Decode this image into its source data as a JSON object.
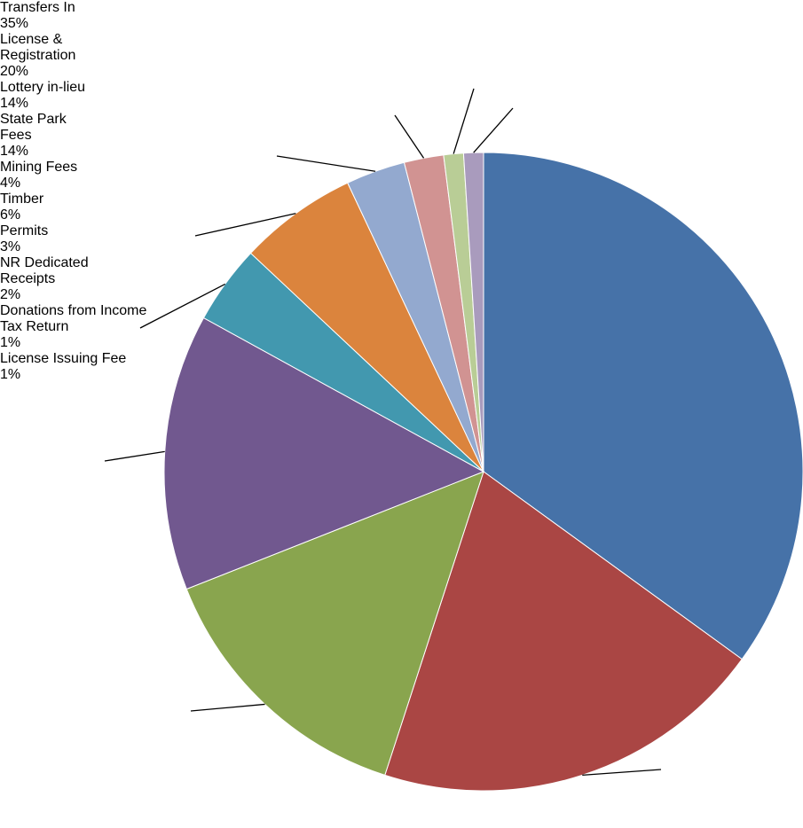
{
  "chart_data": {
    "type": "pie",
    "categories": [
      "Transfers In",
      "License & Registration",
      "Lottery in-lieu",
      "State Park Fees",
      "Mining Fees",
      "Timber",
      "Permits",
      "NR Dedicated Receipts",
      "Donations from Income Tax Return",
      "License Issuing Fee"
    ],
    "values": [
      35,
      20,
      14,
      14,
      4,
      6,
      3,
      2,
      1,
      1
    ],
    "value_labels": [
      "35%",
      "20%",
      "14%",
      "14%",
      "4%",
      "6%",
      "3%",
      "2%",
      "1%",
      "1%"
    ],
    "colors": [
      "#4672a8",
      "#aa4644",
      "#89a54e",
      "#71588f",
      "#4298af",
      "#db843d",
      "#93a9cf",
      "#d19392",
      "#b9cd96",
      "#a99bbd"
    ]
  }
}
